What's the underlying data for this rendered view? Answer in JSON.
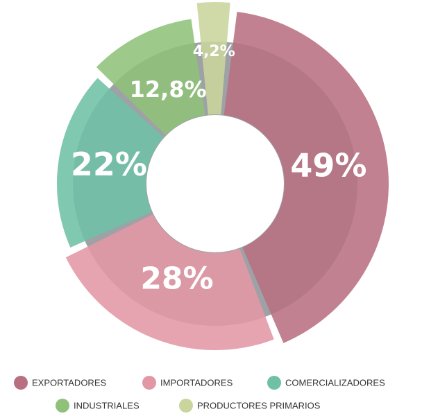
{
  "chart_data": {
    "type": "pie",
    "categories": [
      "EXPORTADORES",
      "IMPORTADORES",
      "COMERCIALIZADORES",
      "INDUSTRIALES",
      "PRODUCTORES PRIMARIOS"
    ],
    "values": [
      49,
      28,
      22,
      12.8,
      4.2
    ],
    "value_labels": [
      "49%",
      "28%",
      "22%",
      "12,8%",
      "4,2%"
    ],
    "colors": [
      "#b86f82",
      "#e297a5",
      "#6fc0a6",
      "#8fc17a",
      "#c9d59c"
    ],
    "legend": "bottom"
  }
}
